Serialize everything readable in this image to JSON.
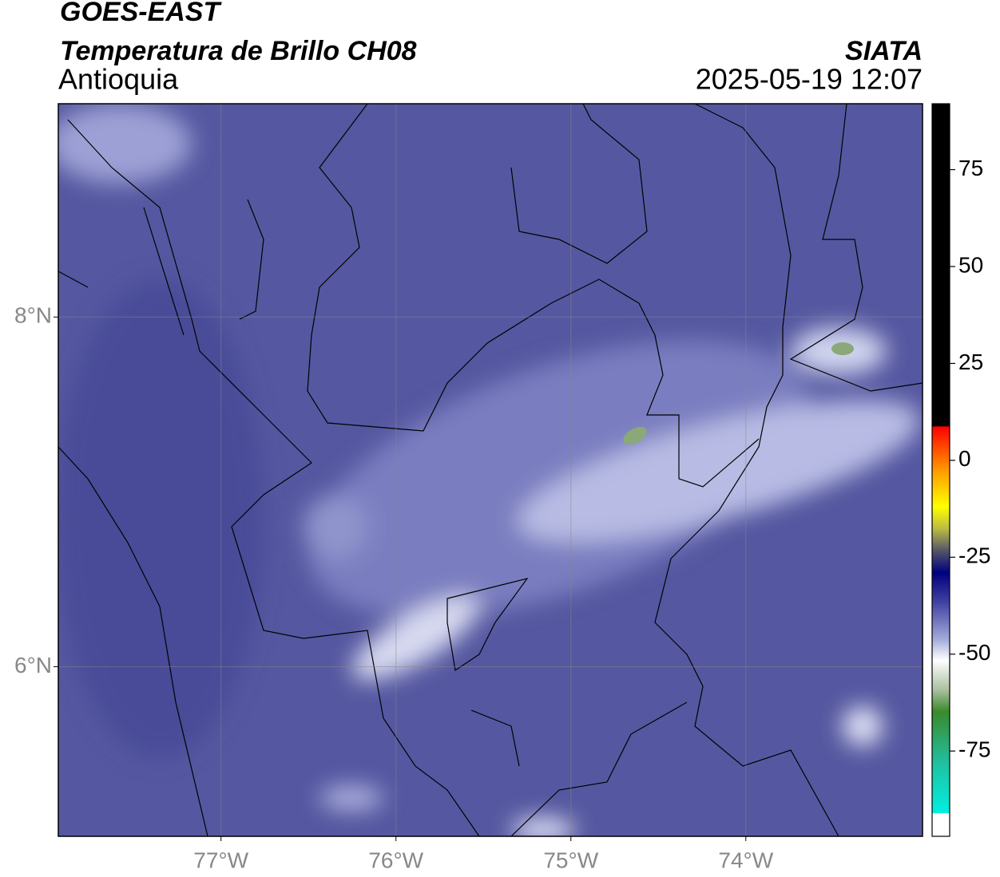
{
  "header": {
    "title": "GOES-EAST",
    "subtitle": "Temperatura de Brillo CH08",
    "region": "Antioquia",
    "source": "SIATA",
    "timestamp": "2025-05-19 12:07"
  },
  "map": {
    "latlim": [
      5.03,
      9.22
    ],
    "lonlim": [
      -77.93,
      -72.99
    ],
    "latticks": [
      {
        "value": 8,
        "label": "8°N"
      },
      {
        "value": 6,
        "label": "6°N"
      }
    ],
    "lonticks": [
      {
        "value": -77,
        "label": "77°W"
      },
      {
        "value": -76,
        "label": "76°W"
      },
      {
        "value": -75,
        "label": "75°W"
      },
      {
        "value": -74,
        "label": "74°W"
      }
    ],
    "grid": true
  },
  "colorbar": {
    "lim": [
      -97,
      92
    ],
    "ticks": [
      75,
      50,
      25,
      0,
      -25,
      -50,
      -75
    ]
  }
}
